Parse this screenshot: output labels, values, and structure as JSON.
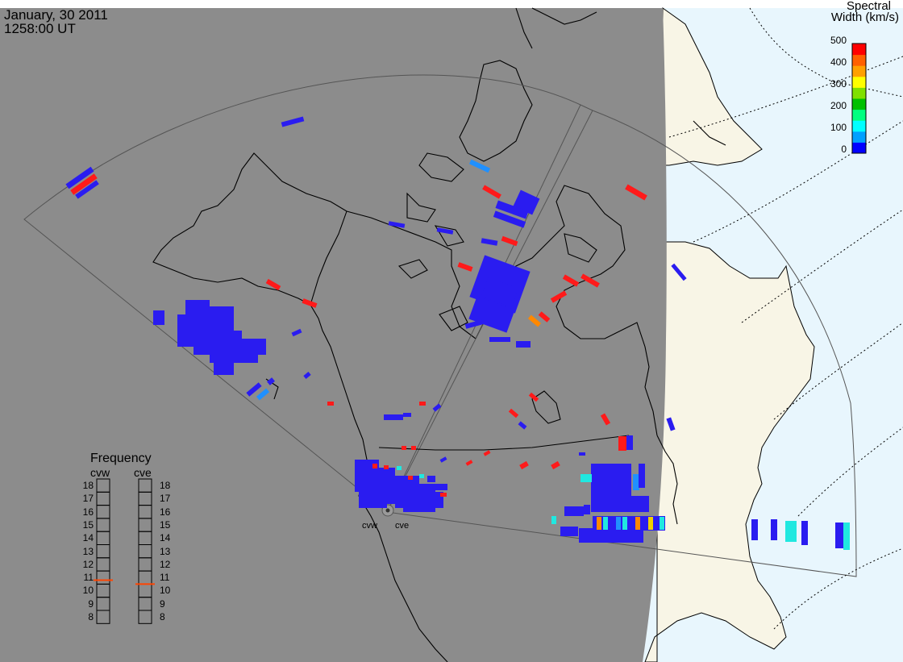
{
  "header": {
    "date": "January, 30 2011",
    "time": "1258:00 UT"
  },
  "colorbar": {
    "title_line1": "Spectral",
    "title_line2": "Width (km/s)",
    "ticks": [
      "500",
      "400",
      "300",
      "200",
      "100",
      "0"
    ],
    "colors": [
      "#0000ff",
      "#00a0ff",
      "#00ffff",
      "#00ff80",
      "#00c000",
      "#80e000",
      "#ffff00",
      "#ffa000",
      "#ff6000",
      "#ff0000"
    ]
  },
  "frequency_panel": {
    "title": "Frequency",
    "radar_left": "cvw",
    "radar_right": "cve",
    "ticks": [
      "18",
      "17",
      "16",
      "15",
      "14",
      "13",
      "12",
      "11",
      "10",
      "9",
      "8"
    ],
    "cvw_value_mhz": 10.8,
    "cve_value_mhz": 10.5,
    "marker_color": "#ff4400"
  },
  "radars": {
    "left_label": "cvw",
    "right_label": "cve"
  },
  "map_colors": {
    "night": "#8c8c8c",
    "day_ocean": "#e8f6fd",
    "day_land": "#f8f5e6",
    "coast": "#000000",
    "fov": "#555555",
    "grid": "#000000"
  }
}
